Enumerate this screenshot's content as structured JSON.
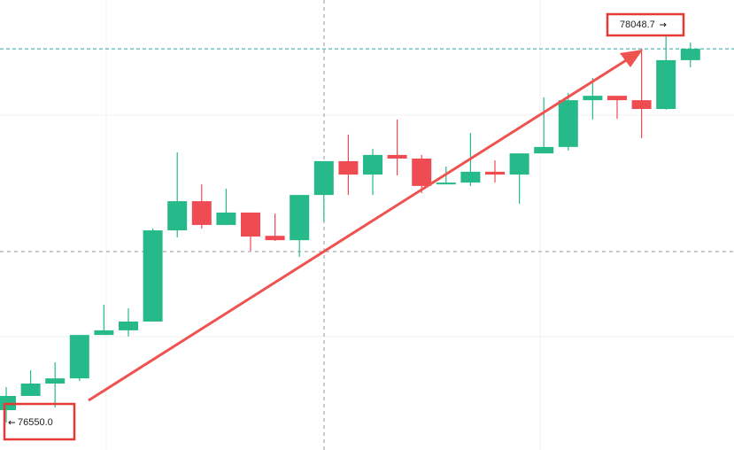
{
  "chart_data": {
    "type": "candlestick",
    "up_color": "#26b98a",
    "down_color": "#ee4b53",
    "open": [
      76598,
      76653,
      76701,
      76721,
      76889,
      76907,
      76941,
      77294,
      77407,
      77315,
      77363,
      77273,
      77256,
      77431,
      77562,
      77510,
      77586,
      77572,
      77472,
      77479,
      77521,
      77510,
      77592,
      77617,
      77798,
      77815,
      77798,
      77764,
      77953
    ],
    "high": [
      76687,
      76752,
      76783,
      76889,
      77006,
      76992,
      77301,
      77596,
      77472,
      77455,
      77363,
      77359,
      77431,
      77562,
      77665,
      77610,
      77723,
      77586,
      77541,
      77671,
      77565,
      77592,
      77809,
      77826,
      77884,
      77815,
      77997,
      78048.7,
      78021
    ],
    "low": [
      76550,
      76653,
      76608,
      76711,
      76889,
      76883,
      76941,
      77267,
      77301,
      77315,
      77215,
      77253,
      77191,
      77328,
      77431,
      77431,
      77507,
      77438,
      77472,
      77466,
      77479,
      77397,
      77592,
      77603,
      77723,
      77726,
      77651,
      77761,
      77925
    ],
    "close": [
      76653,
      76701,
      76721,
      76889,
      76907,
      76941,
      77294,
      77407,
      77315,
      77363,
      77270,
      77256,
      77431,
      77562,
      77510,
      77586,
      77572,
      77466,
      77479,
      77521,
      77510,
      77592,
      77617,
      77798,
      77815,
      77798,
      77764,
      77953,
      77997
    ],
    "annotations": [
      {
        "text": "78048.7",
        "value": 78048.7
      },
      {
        "text": "76550.0",
        "value": 76550
      }
    ]
  }
}
